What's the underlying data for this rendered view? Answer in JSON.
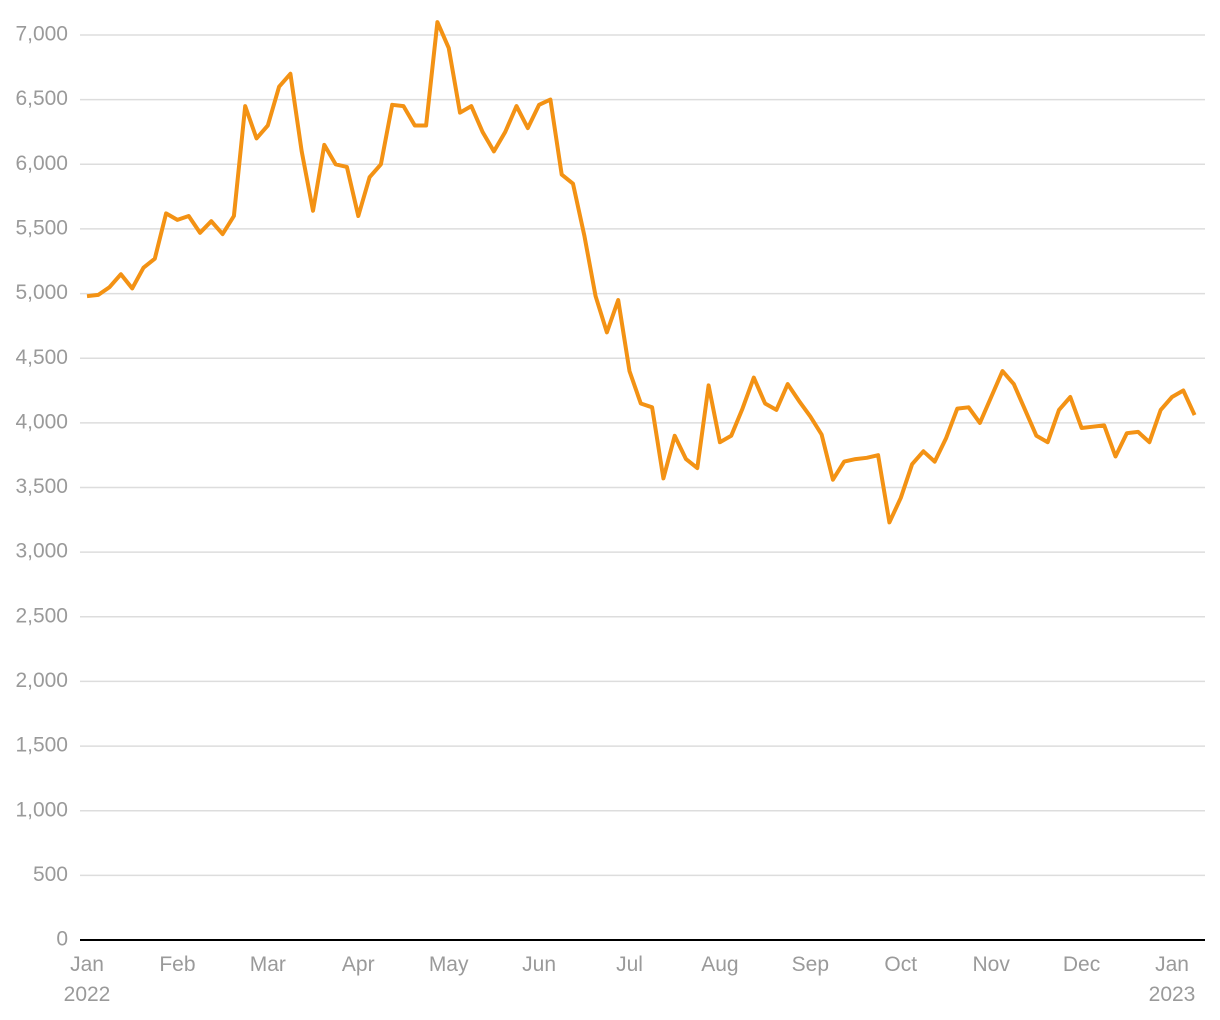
{
  "chart_data": {
    "type": "line",
    "categories": [
      "Jan 2022",
      null,
      null,
      null,
      null,
      null,
      null,
      null,
      "Feb",
      null,
      null,
      null,
      null,
      null,
      null,
      null,
      "Mar",
      null,
      null,
      null,
      null,
      null,
      null,
      null,
      "Apr",
      null,
      null,
      null,
      null,
      null,
      null,
      null,
      "May",
      null,
      null,
      null,
      null,
      null,
      null,
      null,
      "Jun",
      null,
      null,
      null,
      null,
      null,
      null,
      null,
      "Jul",
      null,
      null,
      null,
      null,
      null,
      null,
      null,
      "Aug",
      null,
      null,
      null,
      null,
      null,
      null,
      null,
      "Sep",
      null,
      null,
      null,
      null,
      null,
      null,
      null,
      "Oct",
      null,
      null,
      null,
      null,
      null,
      null,
      null,
      "Nov",
      null,
      null,
      null,
      null,
      null,
      null,
      null,
      "Dec",
      null,
      null,
      null,
      null,
      null,
      null,
      null,
      "Jan 2023",
      null,
      null
    ],
    "values": [
      4980,
      4990,
      5050,
      5150,
      5040,
      5200,
      5270,
      5620,
      5570,
      5600,
      5470,
      5560,
      5460,
      5600,
      6450,
      6200,
      6300,
      6600,
      6700,
      6100,
      5640,
      6150,
      6000,
      5980,
      5600,
      5900,
      6000,
      6460,
      6450,
      6300,
      6300,
      7100,
      6900,
      6400,
      6450,
      6250,
      6100,
      6250,
      6450,
      6280,
      6460,
      6500,
      5920,
      5850,
      5450,
      4980,
      4700,
      4950,
      4400,
      4150,
      4120,
      3570,
      3900,
      3720,
      3650,
      4290,
      3850,
      3900,
      4110,
      4350,
      4150,
      4100,
      4300,
      4170,
      4050,
      3910,
      3560,
      3700,
      3720,
      3730,
      3750,
      3230,
      3420,
      3680,
      3780,
      3700,
      3880,
      4110,
      4120,
      4000,
      4200,
      4400,
      4300,
      4100,
      3900,
      3850,
      4100,
      4200,
      3960,
      3970,
      3980,
      3740,
      3920,
      3930,
      3850,
      4100,
      4200,
      4250,
      4060
    ],
    "color": "#f39214",
    "ylim": [
      0,
      7000
    ],
    "yticks": [
      0,
      500,
      {
        "value": 1000,
        "label": "1,000"
      },
      {
        "value": 1500,
        "label": "1,500"
      },
      {
        "value": 2000,
        "label": "2,000"
      },
      {
        "value": 2500,
        "label": "2,500"
      },
      {
        "value": 3000,
        "label": "3,000"
      },
      {
        "value": 3500,
        "label": "3,500"
      },
      {
        "value": 4000,
        "label": "4,000"
      },
      {
        "value": 4500,
        "label": "4,500"
      },
      {
        "value": 5000,
        "label": "5,000"
      },
      {
        "value": 5500,
        "label": "5,500"
      },
      {
        "value": 6000,
        "label": "6,000"
      },
      {
        "value": 6500,
        "label": "6,500"
      },
      {
        "value": 7000,
        "label": "7,000"
      }
    ],
    "grid": true
  }
}
